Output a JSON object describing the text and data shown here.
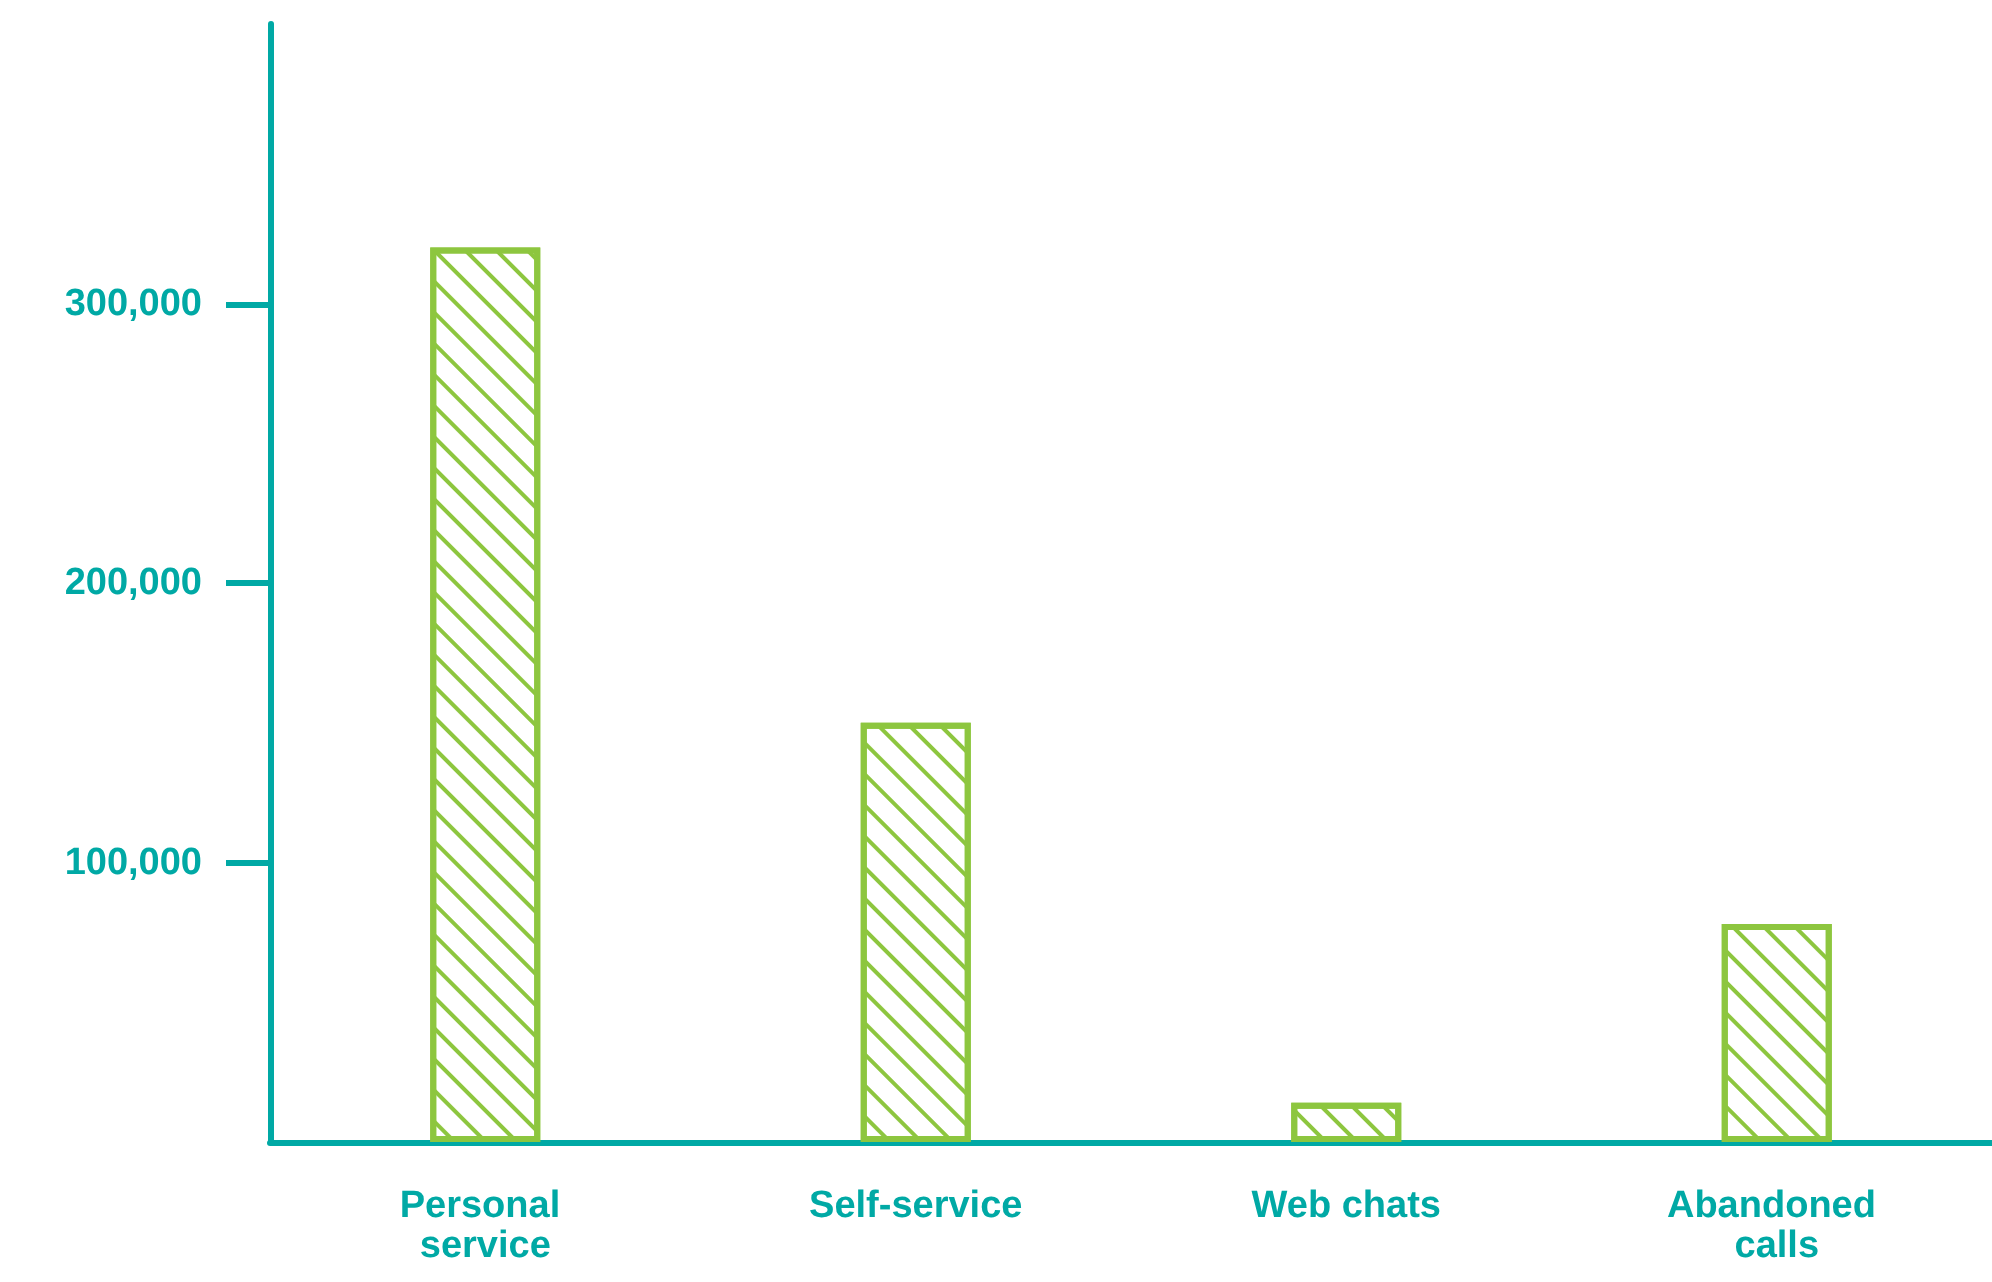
{
  "chart_data": {
    "type": "bar",
    "categories": [
      "Personal service",
      "Self-service",
      "Web chats",
      "Abandoned calls"
    ],
    "values": [
      320000,
      150000,
      14000,
      78000
    ],
    "color": "#8dc63f",
    "ylim": [
      0,
      400000
    ],
    "yticks": [
      {
        "value": 100000,
        "label": "100,000"
      },
      {
        "value": 200000,
        "label": "200,000"
      },
      {
        "value": 300000,
        "label": "300,000"
      }
    ],
    "grid": false
  }
}
